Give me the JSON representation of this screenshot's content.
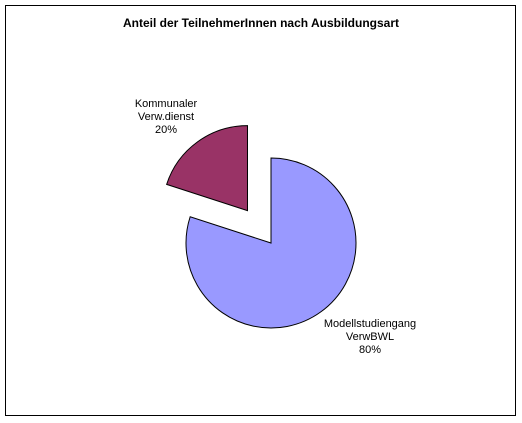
{
  "chart_data": {
    "type": "pie",
    "title": "Anteil der TeilnehmerInnen nach Ausbildungsart",
    "categories": [
      "Kommunaler Verw.dienst",
      "Modellstudiengang VerwBWL"
    ],
    "values": [
      20,
      80
    ],
    "value_labels": [
      "20%",
      "80%"
    ],
    "colors": [
      "#993366",
      "#9999ff"
    ]
  }
}
